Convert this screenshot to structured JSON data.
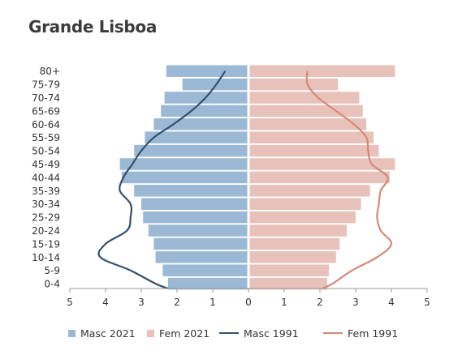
{
  "title": "Grande Lisboa",
  "colors": {
    "masc_2021": "#9bb9d4",
    "fem_2021": "#e8c2ba",
    "masc_1991": "#34506f",
    "fem_1991": "#d58878",
    "axis": "#999999",
    "tick_text": "#333333"
  },
  "chart_data": {
    "type": "bar",
    "orientation": "horizontal",
    "subtype": "population-pyramid",
    "title": "Grande Lisboa",
    "categories": [
      "80+",
      "75-79",
      "70-74",
      "65-69",
      "60-64",
      "55-59",
      "50-54",
      "45-49",
      "40-44",
      "35-39",
      "30-34",
      "25-29",
      "20-24",
      "15-19",
      "10-14",
      "5-9",
      "0-4"
    ],
    "series": [
      {
        "name": "Masc 2021",
        "kind": "bar",
        "side": "left",
        "values": [
          2.3,
          1.85,
          2.35,
          2.45,
          2.65,
          2.9,
          3.2,
          3.6,
          3.55,
          3.2,
          3.0,
          2.95,
          2.8,
          2.65,
          2.6,
          2.4,
          2.25
        ]
      },
      {
        "name": "Fem 2021",
        "kind": "bar",
        "side": "right",
        "values": [
          4.1,
          2.5,
          3.1,
          3.2,
          3.3,
          3.5,
          3.65,
          4.1,
          3.95,
          3.4,
          3.15,
          3.0,
          2.75,
          2.55,
          2.45,
          2.25,
          2.2
        ]
      },
      {
        "name": "Masc 1991",
        "kind": "line",
        "side": "left",
        "values": [
          0.65,
          0.9,
          1.2,
          1.6,
          2.1,
          2.65,
          3.0,
          3.25,
          3.5,
          3.6,
          3.3,
          3.3,
          3.4,
          4.0,
          4.15,
          3.3,
          2.6
        ]
      },
      {
        "name": "Fem 1991",
        "kind": "line",
        "side": "right",
        "values": [
          1.65,
          1.65,
          1.95,
          2.45,
          2.95,
          3.3,
          3.35,
          3.45,
          3.9,
          3.7,
          3.65,
          3.6,
          3.7,
          4.0,
          3.6,
          2.9,
          2.35
        ]
      }
    ],
    "xaxis": {
      "ticks": [
        "5",
        "4",
        "3",
        "2",
        "1",
        "0",
        "1",
        "2",
        "3",
        "4",
        "5"
      ],
      "range": [
        -5,
        5
      ]
    },
    "grid": false,
    "legend_position": "bottom"
  },
  "legend": [
    {
      "label": "Masc 2021",
      "type": "box",
      "color_key": "masc_2021"
    },
    {
      "label": "Fem 2021",
      "type": "box",
      "color_key": "fem_2021"
    },
    {
      "label": "Masc 1991",
      "type": "line",
      "color_key": "masc_1991"
    },
    {
      "label": "Fem 1991",
      "type": "line",
      "color_key": "fem_1991"
    }
  ]
}
